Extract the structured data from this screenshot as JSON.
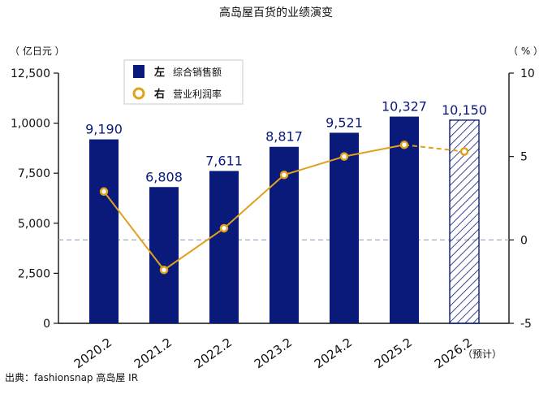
{
  "chart_data": {
    "type": "bar",
    "title": "高岛屋百货的业绩演变",
    "categories": [
      "2020.2",
      "2021.2",
      "2022.2",
      "2023.2",
      "2024.2",
      "2025.2",
      "2026.2"
    ],
    "forecast_note": "（预计）",
    "left_axis": {
      "unit": "（ 亿日元 ）",
      "ylim": [
        0,
        12500
      ],
      "ticks": [
        0,
        2500,
        5000,
        7500,
        10000,
        12500
      ],
      "tick_labels": [
        "0",
        "2,500",
        "5,000",
        "7,500",
        "1,0000",
        "12,500"
      ]
    },
    "right_axis": {
      "unit": "（ % ）",
      "ylim": [
        -5,
        10
      ],
      "ticks": [
        -5,
        0,
        5,
        10
      ],
      "tick_labels": [
        "-5",
        "0",
        "5",
        "10"
      ],
      "zero_line": "dashed"
    },
    "series": [
      {
        "name": "综合销售额",
        "axis_tag": "左",
        "type": "bar",
        "values": [
          9190,
          6808,
          7611,
          8817,
          9521,
          10327,
          10150
        ],
        "labels": [
          "9,190",
          "6,808",
          "7,611",
          "8,817",
          "9,521",
          "10,327",
          "10,150"
        ],
        "forecast_index": 6,
        "color": "#0a1a7a",
        "forecast_pattern": "diagonal-hatch"
      },
      {
        "name": "营业利润率",
        "axis_tag": "右",
        "type": "line",
        "values": [
          2.9,
          -1.8,
          0.7,
          3.9,
          5.0,
          5.7,
          5.3
        ],
        "forecast_index": 6,
        "color": "#e0a21b"
      }
    ],
    "legend_position": "top-left",
    "grid": false
  },
  "footer": {
    "source": "出典：fashionsnap   高岛屋 IR"
  },
  "colors": {
    "bar": "#0a1a7a",
    "line": "#e0a21b",
    "zero_line": "#9aa3c4"
  }
}
